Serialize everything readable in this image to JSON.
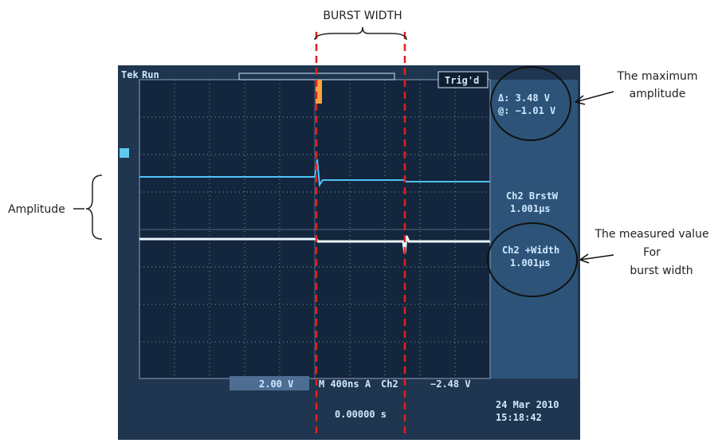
{
  "annotations": {
    "burst_width": "BURST WIDTH",
    "max_amplitude": [
      "The maximum",
      "amplitude"
    ],
    "measured_value": [
      "The measured value",
      "For",
      "burst width"
    ],
    "amplitude": "Amplitude"
  },
  "scope": {
    "brand": "Tek",
    "state": "Run",
    "trigger": "Trig'd",
    "delta": "Δ:  3.48 V",
    "at": "@: −1.01 V",
    "meas1_name": "Ch2 BrstW",
    "meas1_value": "1.001µs",
    "meas2_name": "Ch2 +Width",
    "meas2_value": "1.001µs",
    "ch_scale": "2.00 V",
    "timebase": "M 400ns",
    "trig_mode": "A",
    "trig_source": "Ch2",
    "trig_level": "−2.48 V",
    "position": "0.00000 s",
    "date": "24 Mar 2010",
    "time": "15:18:42"
  }
}
